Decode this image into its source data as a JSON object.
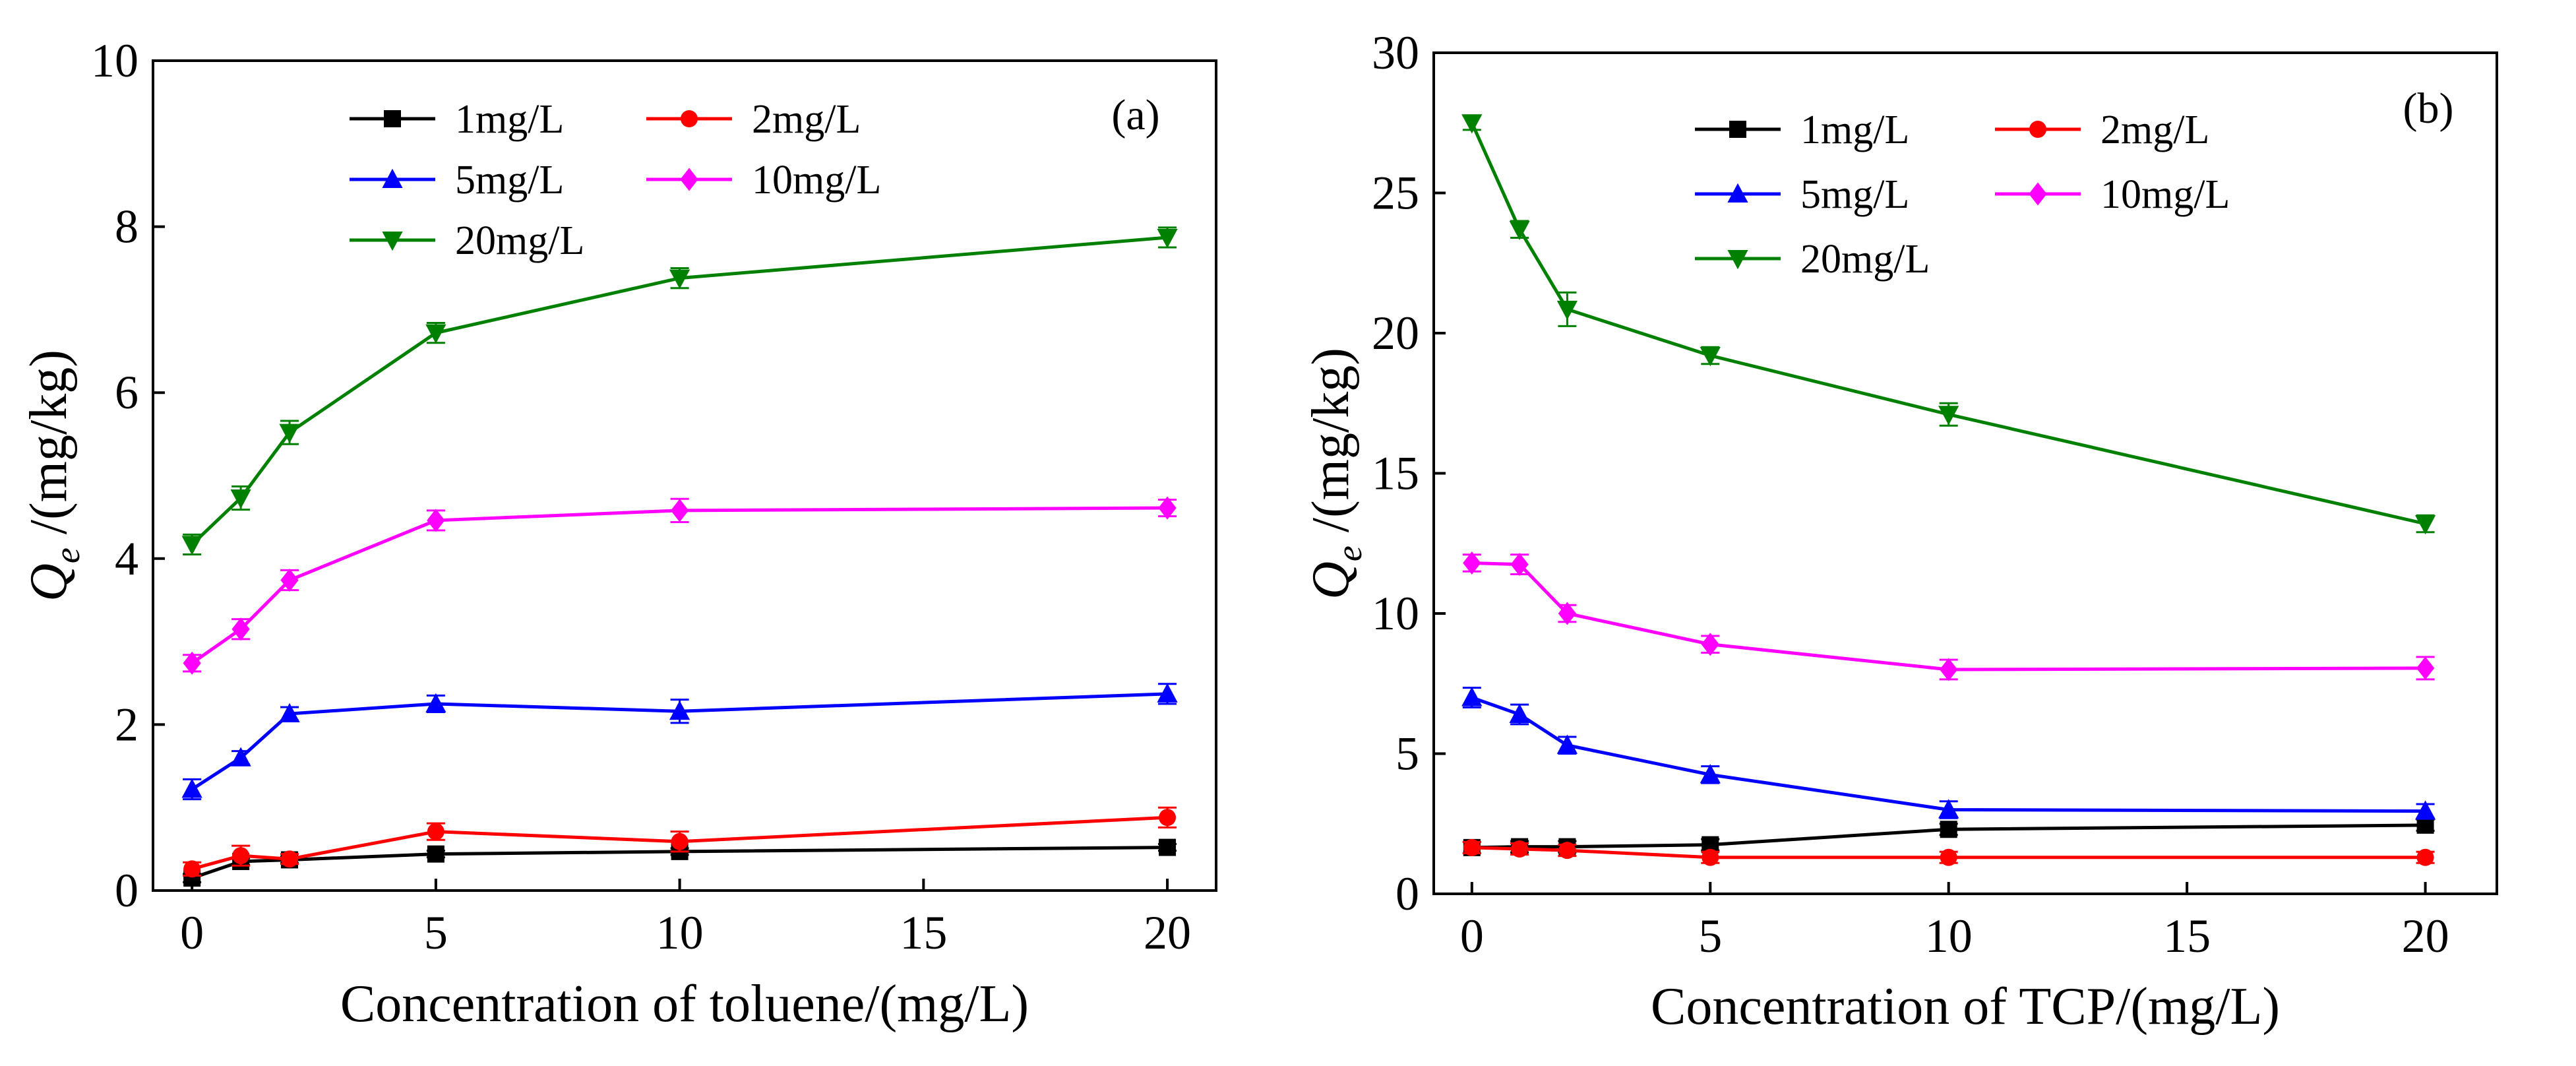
{
  "chart_data": [
    {
      "type": "line",
      "panel_label": "(a)",
      "title": "",
      "xlabel": "Concentration of toluene/(mg/L)",
      "ylabel_symbol": "Q",
      "ylabel_subscript": "e",
      "ylabel_unit": " /(mg/kg)",
      "xlim": [
        -0.8,
        21
      ],
      "ylim": [
        0,
        10
      ],
      "xticks": [
        0,
        5,
        10,
        15,
        20
      ],
      "yticks": [
        0,
        2,
        4,
        6,
        8,
        10
      ],
      "grid": false,
      "legend_position": "top-right",
      "x": [
        0,
        1,
        2,
        5,
        10,
        20
      ],
      "series": [
        {
          "name": "1mg/L",
          "color": "#000000",
          "marker": "square",
          "values": [
            0.15,
            0.35,
            0.37,
            0.44,
            0.47,
            0.52
          ],
          "errors": [
            0.05,
            0.04,
            0.04,
            0.04,
            0.04,
            0.04
          ]
        },
        {
          "name": "2mg/L",
          "color": "#ff0000",
          "marker": "circle",
          "values": [
            0.26,
            0.42,
            0.38,
            0.71,
            0.59,
            0.88
          ],
          "errors": [
            0.08,
            0.12,
            0.06,
            0.1,
            0.12,
            0.12
          ]
        },
        {
          "name": "5mg/L",
          "color": "#0000ff",
          "marker": "triangle-up",
          "values": [
            1.22,
            1.6,
            2.13,
            2.25,
            2.16,
            2.37
          ],
          "errors": [
            0.12,
            0.08,
            0.08,
            0.1,
            0.14,
            0.12
          ]
        },
        {
          "name": "10mg/L",
          "color": "#ff00ff",
          "marker": "diamond",
          "values": [
            2.74,
            3.15,
            3.74,
            4.46,
            4.58,
            4.61
          ],
          "errors": [
            0.1,
            0.12,
            0.12,
            0.12,
            0.14,
            0.1
          ]
        },
        {
          "name": "20mg/L",
          "color": "#008000",
          "marker": "triangle-down",
          "values": [
            4.17,
            4.73,
            5.52,
            6.72,
            7.38,
            7.87
          ],
          "errors": [
            0.12,
            0.14,
            0.14,
            0.12,
            0.12,
            0.12
          ]
        }
      ]
    },
    {
      "type": "line",
      "panel_label": "(b)",
      "title": "",
      "xlabel": "Concentration of TCP/(mg/L)",
      "ylabel_symbol": "Q",
      "ylabel_subscript": "e",
      "ylabel_unit": " /(mg/kg)",
      "xlim": [
        -0.8,
        21.5
      ],
      "ylim": [
        0,
        30
      ],
      "xticks": [
        0,
        5,
        10,
        15,
        20
      ],
      "yticks": [
        0,
        5,
        10,
        15,
        20,
        25,
        30
      ],
      "grid": false,
      "legend_position": "top-right",
      "x": [
        0,
        1,
        2,
        5,
        10,
        20
      ],
      "series": [
        {
          "name": "1mg/L",
          "color": "#000000",
          "marker": "square",
          "values": [
            1.65,
            1.68,
            1.68,
            1.75,
            2.3,
            2.45
          ],
          "errors": [
            0.2,
            0.2,
            0.2,
            0.2,
            0.2,
            0.2
          ]
        },
        {
          "name": "2mg/L",
          "color": "#ff0000",
          "marker": "circle",
          "values": [
            1.65,
            1.6,
            1.55,
            1.3,
            1.3,
            1.3
          ],
          "errors": [
            0.2,
            0.2,
            0.2,
            0.2,
            0.2,
            0.2
          ]
        },
        {
          "name": "5mg/L",
          "color": "#0000ff",
          "marker": "triangle-up",
          "values": [
            7.0,
            6.4,
            5.3,
            4.25,
            3.0,
            2.95
          ],
          "errors": [
            0.35,
            0.35,
            0.3,
            0.3,
            0.3,
            0.25
          ]
        },
        {
          "name": "10mg/L",
          "color": "#ff00ff",
          "marker": "diamond",
          "values": [
            11.8,
            11.75,
            10.0,
            8.9,
            8.0,
            8.05
          ],
          "errors": [
            0.3,
            0.35,
            0.3,
            0.3,
            0.35,
            0.4
          ]
        },
        {
          "name": "20mg/L",
          "color": "#008000",
          "marker": "triangle-down",
          "values": [
            27.5,
            23.7,
            20.85,
            19.2,
            17.1,
            13.2
          ],
          "errors": [
            0.25,
            0.3,
            0.6,
            0.3,
            0.4,
            0.3
          ]
        }
      ]
    }
  ]
}
